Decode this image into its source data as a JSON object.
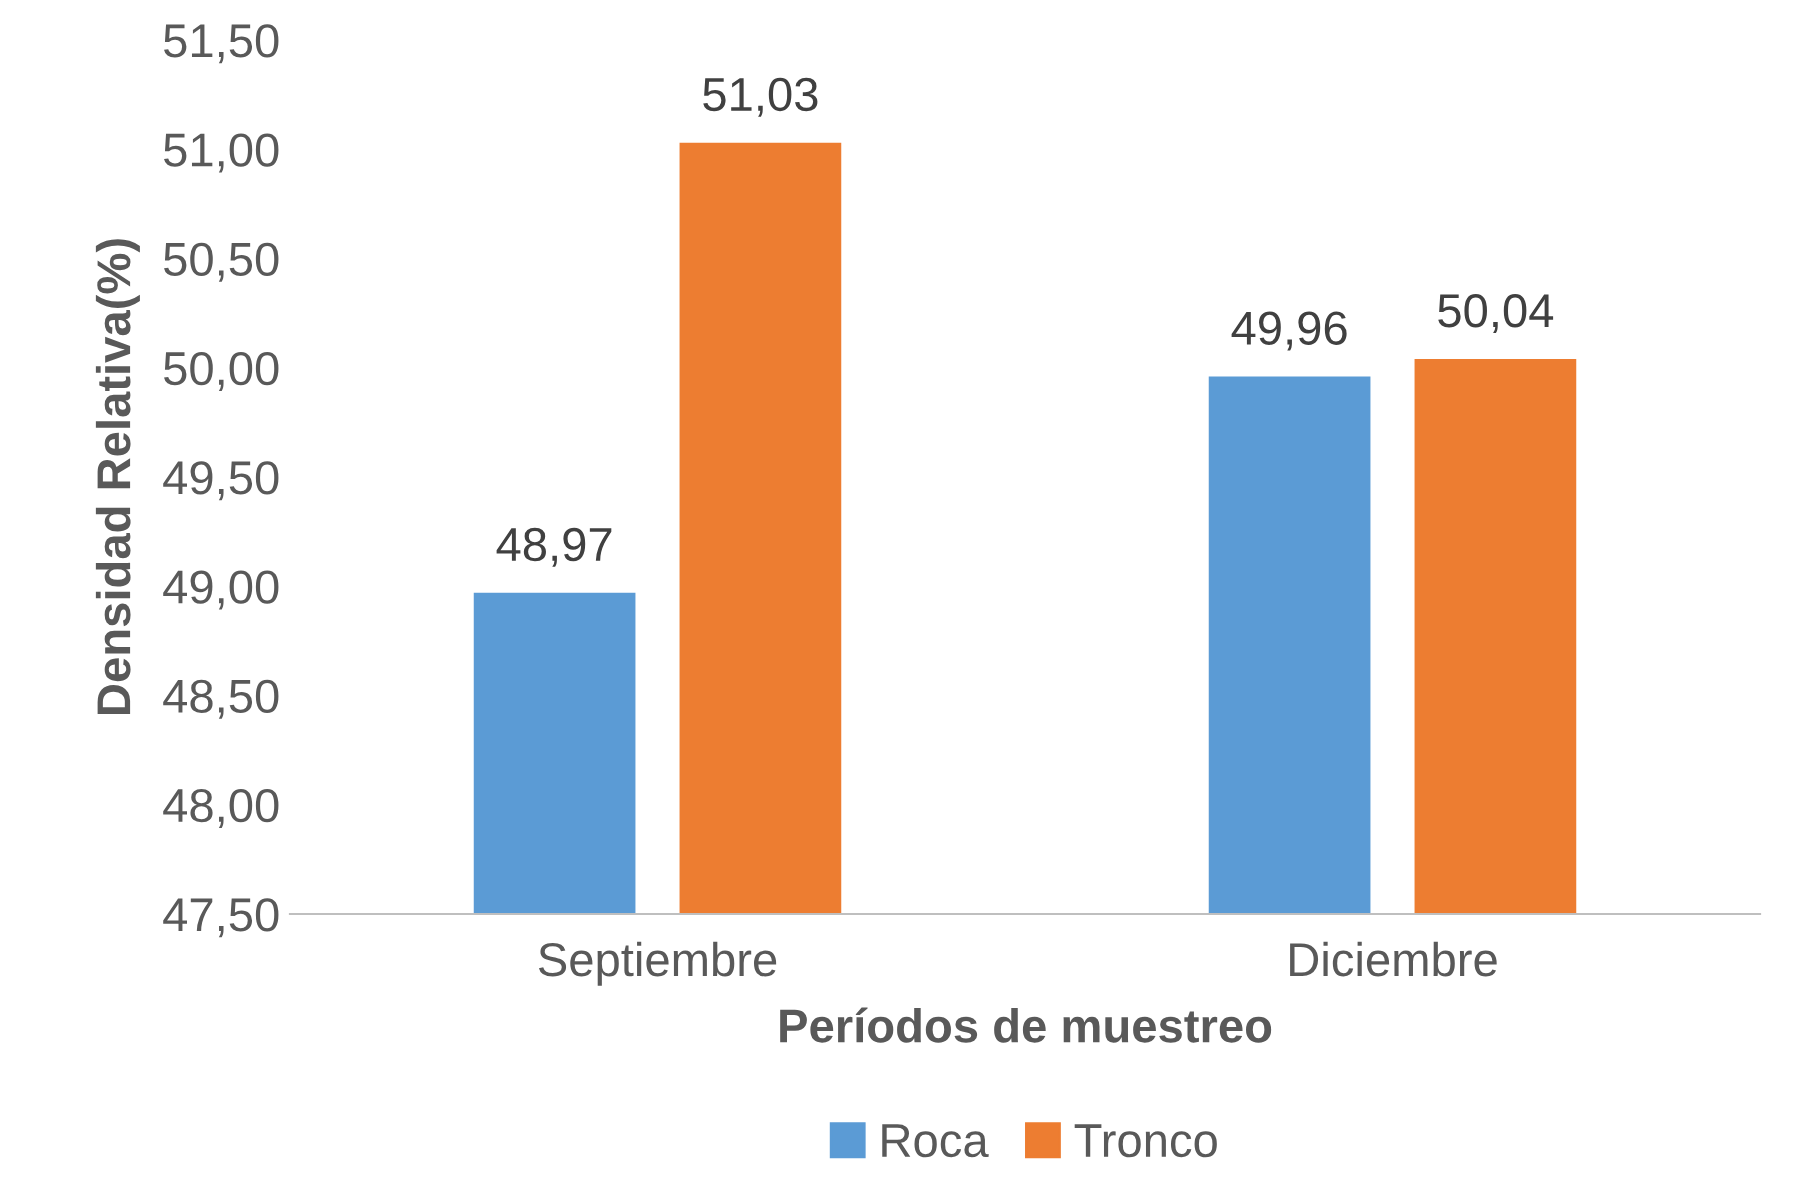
{
  "chart_data": {
    "type": "bar",
    "xlabel": "Períodos de muestreo",
    "ylabel": "Densidad Relativa(%)",
    "categories": [
      "Septiembre",
      "Diciembre"
    ],
    "series": [
      {
        "name": "Roca",
        "color": "#5b9bd5",
        "values": [
          48.97,
          49.96
        ],
        "value_labels": [
          "48,97",
          "49,96"
        ]
      },
      {
        "name": "Tronco",
        "color": "#ed7d31",
        "values": [
          51.03,
          50.04
        ],
        "value_labels": [
          "51,03",
          "50,04"
        ]
      }
    ],
    "ylim": [
      47.5,
      51.5
    ],
    "yticks": [
      {
        "value": 47.5,
        "label": "47,50"
      },
      {
        "value": 48,
        "label": "48,00"
      },
      {
        "value": 48.5,
        "label": "48,50"
      },
      {
        "value": 49,
        "label": "49,00"
      },
      {
        "value": 49.5,
        "label": "49,50"
      },
      {
        "value": 50,
        "label": "50,00"
      },
      {
        "value": 50.5,
        "label": "50,50"
      },
      {
        "value": 51,
        "label": "51,00"
      },
      {
        "value": 51.5,
        "label": "51,50"
      }
    ],
    "grid": false,
    "legend": "bottom"
  }
}
